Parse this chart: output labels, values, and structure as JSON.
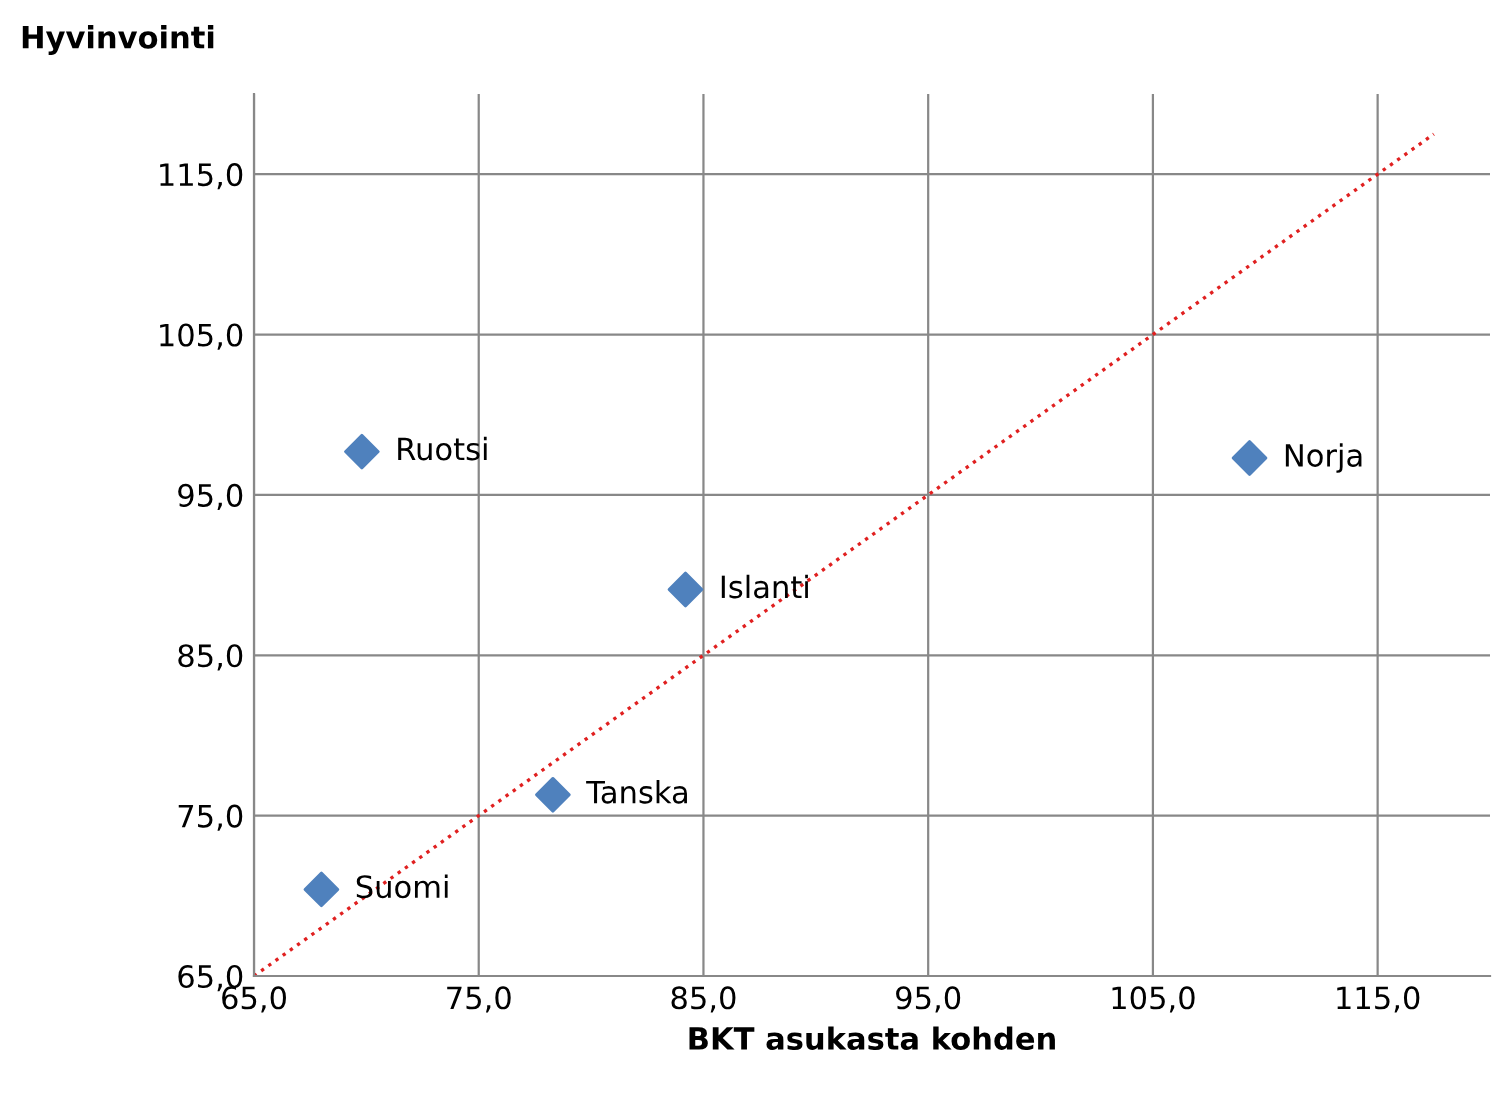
{
  "chart_data": {
    "type": "scatter",
    "xlabel": "BKT asukasta kohden",
    "ylabel": "Hyvinvointi",
    "series": [
      {
        "color": "#4f81bd",
        "marker": "diamond",
        "x": [
          69.8,
          109.3,
          84.2,
          78.3,
          68.0
        ],
        "values": [
          97.7,
          97.3,
          89.1,
          76.3,
          70.4
        ]
      },
      {
        "type": "line",
        "color": "#e02020",
        "line_style": "dotted",
        "marker": "none",
        "x": [
          65.0,
          117.5
        ],
        "values": [
          65.0,
          117.5
        ]
      }
    ],
    "annotations": [
      {
        "text": "Ruotsi",
        "x": 69.8,
        "y": 97.7
      },
      {
        "text": "Norja",
        "x": 109.3,
        "y": 97.3
      },
      {
        "text": "Islanti",
        "x": 84.2,
        "y": 89.1
      },
      {
        "text": "Tanska",
        "x": 78.3,
        "y": 76.3
      },
      {
        "text": "Suomi",
        "x": 68.0,
        "y": 70.4
      }
    ],
    "xlim": [
      65,
      120
    ],
    "ylim": [
      65,
      120
    ],
    "xticks": [
      {
        "value": 65,
        "label": "65,0"
      },
      {
        "value": 75,
        "label": "75,0"
      },
      {
        "value": 85,
        "label": "85,0"
      },
      {
        "value": 95,
        "label": "95,0"
      },
      {
        "value": 105,
        "label": "105,0"
      },
      {
        "value": 115,
        "label": "115,0"
      }
    ],
    "yticks": [
      {
        "value": 65,
        "label": "65,0"
      },
      {
        "value": 75,
        "label": "75,0"
      },
      {
        "value": 85,
        "label": "85,0"
      },
      {
        "value": 95,
        "label": "95,0"
      },
      {
        "value": 105,
        "label": "105,0"
      },
      {
        "value": 115,
        "label": "115,0"
      }
    ],
    "grid": true
  }
}
